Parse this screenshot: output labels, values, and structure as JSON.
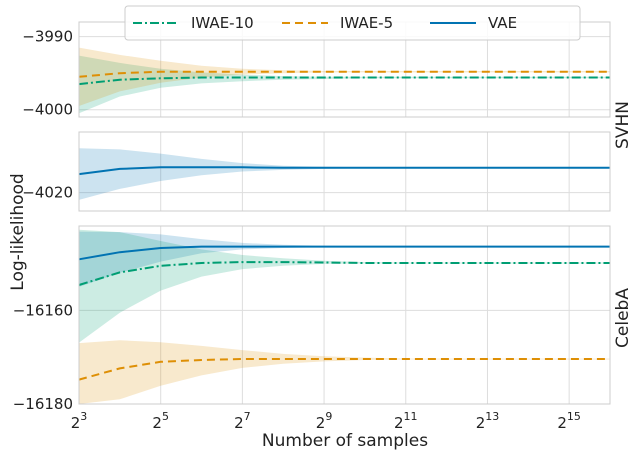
{
  "chart_data": [
    {
      "type": "line",
      "dataset": "SVHN",
      "panel": "top",
      "x_exponents": [
        3,
        4,
        5,
        6,
        7,
        8,
        9,
        10,
        11,
        12,
        13,
        14,
        15,
        16
      ],
      "ylim": [
        -4001,
        -3988
      ],
      "yticks": [
        -3990,
        -4000
      ],
      "ytick_labels": [
        "−3990",
        "−4000"
      ],
      "series": [
        {
          "name": "IWAE-10",
          "color": "#009e73",
          "values": [
            -3996.5,
            -3995.9,
            -3995.7,
            -3995.6,
            -3995.6,
            -3995.6,
            -3995.6,
            -3995.6,
            -3995.6,
            -3995.6,
            -3995.6,
            -3995.6,
            -3995.6,
            -3995.6
          ],
          "band_low": [
            -4000.5,
            -3998.2,
            -3997.0,
            -3996.4,
            -3996.1,
            -3995.9,
            -3995.8,
            -3995.7,
            -3995.7,
            -3995.7,
            -3995.7,
            -3995.7,
            -3995.7,
            -3995.7
          ],
          "band_high": [
            -3992.6,
            -3993.6,
            -3994.4,
            -3994.9,
            -3995.2,
            -3995.4,
            -3995.5,
            -3995.5,
            -3995.5,
            -3995.5,
            -3995.5,
            -3995.5,
            -3995.5,
            -3995.5
          ]
        },
        {
          "name": "IWAE-5",
          "color": "#de8f05",
          "values": [
            -3995.5,
            -3995.0,
            -3994.8,
            -3994.8,
            -3994.8,
            -3994.8,
            -3994.8,
            -3994.8,
            -3994.8,
            -3994.8,
            -3994.8,
            -3994.8,
            -3994.8,
            -3994.8
          ],
          "band_low": [
            -3999.5,
            -3997.5,
            -3996.3,
            -3995.6,
            -3995.2,
            -3995.0,
            -3994.9,
            -3994.9,
            -3994.9,
            -3994.9,
            -3994.9,
            -3994.9,
            -3994.9,
            -3994.9
          ],
          "band_high": [
            -3991.5,
            -3992.5,
            -3993.3,
            -3994.0,
            -3994.4,
            -3994.6,
            -3994.7,
            -3994.7,
            -3994.7,
            -3994.7,
            -3994.7,
            -3994.7,
            -3994.7,
            -3994.7
          ]
        }
      ]
    },
    {
      "type": "line",
      "dataset": "SVHN",
      "panel": "middle",
      "x_exponents": [
        3,
        4,
        5,
        6,
        7,
        8,
        9,
        10,
        11,
        12,
        13,
        14,
        15,
        16
      ],
      "ylim": [
        -4023.5,
        -4008.5
      ],
      "yticks": [
        -4020
      ],
      "ytick_labels": [
        "−4020"
      ],
      "series": [
        {
          "name": "VAE",
          "color": "#0173b2",
          "values": [
            -4016.5,
            -4015.5,
            -4015.2,
            -4015.2,
            -4015.2,
            -4015.3,
            -4015.3,
            -4015.3,
            -4015.3,
            -4015.3,
            -4015.3,
            -4015.3,
            -4015.3,
            -4015.3
          ],
          "band_low": [
            -4021.4,
            -4019.3,
            -4017.8,
            -4016.7,
            -4016.0,
            -4015.7,
            -4015.5,
            -4015.4,
            -4015.4,
            -4015.4,
            -4015.4,
            -4015.4,
            -4015.4,
            -4015.4
          ],
          "band_high": [
            -4011.6,
            -4011.8,
            -4012.6,
            -4013.6,
            -4014.4,
            -4014.9,
            -4015.1,
            -4015.2,
            -4015.2,
            -4015.2,
            -4015.2,
            -4015.2,
            -4015.2,
            -4015.2
          ]
        }
      ]
    },
    {
      "type": "line",
      "dataset": "CelebA",
      "panel": "bottom",
      "x_exponents": [
        3,
        4,
        5,
        6,
        7,
        8,
        9,
        10,
        11,
        12,
        13,
        14,
        15,
        16
      ],
      "xtick_exponents": [
        3,
        5,
        7,
        9,
        11,
        13,
        15
      ],
      "xtick_base": "2",
      "xlabel": "Number of samples",
      "ylim": [
        -16180,
        -16142
      ],
      "yticks": [
        -16160,
        -16180
      ],
      "ytick_labels": [
        "−16160",
        "−16180"
      ],
      "series": [
        {
          "name": "VAE",
          "color": "#0173b2",
          "values": [
            -16149.1,
            -16147.6,
            -16146.7,
            -16146.4,
            -16146.4,
            -16146.4,
            -16146.4,
            -16146.4,
            -16146.4,
            -16146.4,
            -16146.4,
            -16146.4,
            -16146.4,
            -16146.4
          ],
          "band_low": [
            -16155.0,
            -16152.0,
            -16149.6,
            -16147.8,
            -16147.0,
            -16146.7,
            -16146.5,
            -16146.4,
            -16146.4,
            -16146.4,
            -16146.4,
            -16146.4,
            -16146.4,
            -16146.4
          ],
          "band_high": [
            -16143.2,
            -16143.3,
            -16143.8,
            -16144.8,
            -16145.6,
            -16146.0,
            -16146.2,
            -16146.3,
            -16146.4,
            -16146.4,
            -16146.4,
            -16146.4,
            -16146.4,
            -16146.4
          ]
        },
        {
          "name": "IWAE-10",
          "color": "#009e73",
          "values": [
            -16154.6,
            -16151.9,
            -16150.5,
            -16149.9,
            -16149.7,
            -16149.7,
            -16149.8,
            -16149.9,
            -16149.9,
            -16149.9,
            -16149.9,
            -16149.9,
            -16149.9,
            -16149.9
          ],
          "band_low": [
            -16166.9,
            -16160.5,
            -16155.8,
            -16152.8,
            -16151.2,
            -16150.5,
            -16150.1,
            -16150.0,
            -16150.0,
            -16150.0,
            -16150.0,
            -16150.0,
            -16150.0,
            -16150.0
          ],
          "band_high": [
            -16142.8,
            -16143.3,
            -16145.2,
            -16147.0,
            -16148.2,
            -16148.9,
            -16149.4,
            -16149.7,
            -16149.8,
            -16149.8,
            -16149.8,
            -16149.8,
            -16149.8,
            -16149.8
          ]
        },
        {
          "name": "IWAE-5",
          "color": "#de8f05",
          "values": [
            -16174.8,
            -16172.4,
            -16171.0,
            -16170.6,
            -16170.4,
            -16170.4,
            -16170.4,
            -16170.4,
            -16170.4,
            -16170.4,
            -16170.4,
            -16170.4,
            -16170.4,
            -16170.4
          ],
          "band_low": [
            -16180.0,
            -16179.0,
            -16176.1,
            -16173.9,
            -16172.3,
            -16171.4,
            -16170.9,
            -16170.6,
            -16170.5,
            -16170.5,
            -16170.5,
            -16170.5,
            -16170.5,
            -16170.5
          ],
          "band_high": [
            -16167.0,
            -16166.4,
            -16166.8,
            -16167.6,
            -16168.5,
            -16169.3,
            -16169.8,
            -16170.1,
            -16170.3,
            -16170.3,
            -16170.3,
            -16170.3,
            -16170.3,
            -16170.3
          ]
        }
      ]
    }
  ],
  "ylabel": "Log-likelihood",
  "row_labels": [
    "SVHN",
    "CelebA"
  ],
  "legend": {
    "placement": "top-center",
    "entries": [
      {
        "name": "IWAE-10",
        "color": "#009e73",
        "dash": "dashdot"
      },
      {
        "name": "IWAE-5",
        "color": "#de8f05",
        "dash": "dashed"
      },
      {
        "name": "VAE",
        "color": "#0173b2",
        "dash": "solid"
      }
    ]
  },
  "grid": true
}
